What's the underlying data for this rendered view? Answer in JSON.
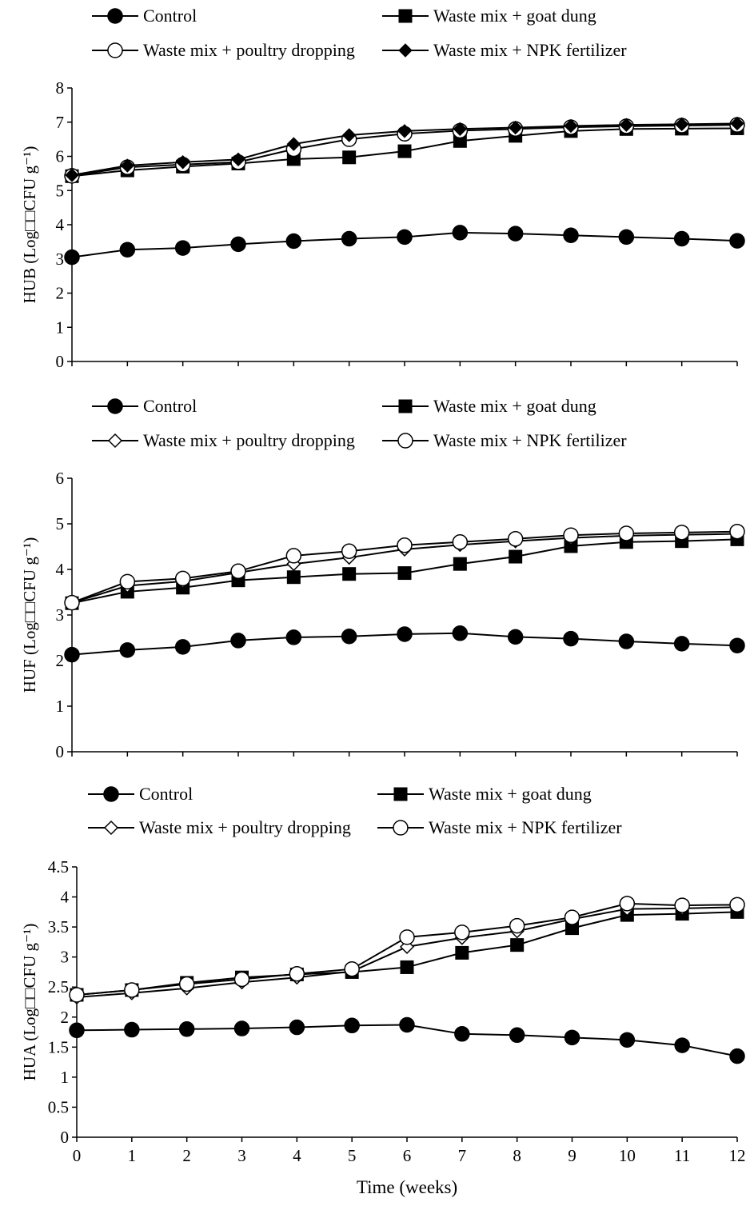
{
  "chart_data": [
    {
      "type": "line",
      "ylabel": "HUB (Log□□CFU g⁻¹)",
      "ylim": [
        0,
        8
      ],
      "yticks": [
        "0",
        "1",
        "2",
        "3",
        "4",
        "5",
        "6",
        "7",
        "8"
      ],
      "x": [
        0,
        1,
        2,
        3,
        4,
        5,
        6,
        7,
        8,
        9,
        10,
        11,
        12
      ],
      "legend": [
        "Control",
        "Waste mix + goat dung",
        "Waste mix + poultry dropping",
        "Waste mix + NPK fertilizer"
      ],
      "series": [
        {
          "name": "Control",
          "marker": "circle-filled",
          "values": [
            3.05,
            3.27,
            3.32,
            3.43,
            3.52,
            3.59,
            3.64,
            3.77,
            3.74,
            3.69,
            3.64,
            3.59,
            3.53
          ]
        },
        {
          "name": "Waste mix + goat dung",
          "marker": "square-filled",
          "values": [
            5.42,
            5.59,
            5.7,
            5.79,
            5.92,
            5.97,
            6.15,
            6.45,
            6.6,
            6.74,
            6.8,
            6.81,
            6.82
          ]
        },
        {
          "name": "Waste mix + poultry dropping",
          "marker": "circle-open",
          "values": [
            5.43,
            5.68,
            5.76,
            5.83,
            6.21,
            6.5,
            6.66,
            6.75,
            6.8,
            6.85,
            6.88,
            6.9,
            6.92
          ]
        },
        {
          "name": "Waste mix + NPK fertilizer",
          "marker": "diamond-filled",
          "values": [
            5.45,
            5.73,
            5.83,
            5.91,
            6.36,
            6.62,
            6.74,
            6.8,
            6.84,
            6.89,
            6.92,
            6.94,
            6.96
          ]
        }
      ]
    },
    {
      "type": "line",
      "ylabel": "HUF (Log□□CFU g⁻¹)",
      "ylim": [
        0,
        6
      ],
      "yticks": [
        "0",
        "1",
        "2",
        "3",
        "4",
        "5",
        "6"
      ],
      "x": [
        0,
        1,
        2,
        3,
        4,
        5,
        6,
        7,
        8,
        9,
        10,
        11,
        12
      ],
      "legend": [
        "Control",
        "Waste mix + goat dung",
        "Waste mix + poultry dropping",
        "Waste mix + NPK fertilizer"
      ],
      "series": [
        {
          "name": "Control",
          "marker": "circle-filled",
          "values": [
            2.13,
            2.23,
            2.3,
            2.44,
            2.51,
            2.53,
            2.58,
            2.6,
            2.52,
            2.48,
            2.42,
            2.37,
            2.33
          ]
        },
        {
          "name": "Waste mix + goat dung",
          "marker": "square-filled",
          "values": [
            3.26,
            3.51,
            3.6,
            3.76,
            3.83,
            3.9,
            3.92,
            4.12,
            4.28,
            4.51,
            4.6,
            4.62,
            4.66
          ]
        },
        {
          "name": "Waste mix + poultry dropping",
          "marker": "diamond-open",
          "values": [
            3.27,
            3.64,
            3.74,
            3.93,
            4.12,
            4.26,
            4.44,
            4.54,
            4.62,
            4.69,
            4.74,
            4.76,
            4.78
          ]
        },
        {
          "name": "Waste mix + NPK fertilizer",
          "marker": "circle-open",
          "values": [
            3.27,
            3.73,
            3.8,
            3.96,
            4.3,
            4.4,
            4.53,
            4.6,
            4.67,
            4.75,
            4.79,
            4.81,
            4.83
          ]
        }
      ]
    },
    {
      "type": "line",
      "ylabel": "HUA (Log□□CFU g⁻¹)",
      "xlabel": "Time (weeks)",
      "ylim": [
        0,
        4.5
      ],
      "yticks": [
        "0",
        "0.5",
        "1",
        "1.5",
        "2",
        "2.5",
        "3",
        "3.5",
        "4",
        "4.5"
      ],
      "x": [
        0,
        1,
        2,
        3,
        4,
        5,
        6,
        7,
        8,
        9,
        10,
        11,
        12
      ],
      "xticks": [
        "0",
        "1",
        "2",
        "3",
        "4",
        "5",
        "6",
        "7",
        "8",
        "9",
        "10",
        "11",
        "12"
      ],
      "legend": [
        "Control",
        "Waste mix + goat dung",
        "Waste mix + poultry dropping",
        "Waste mix + NPK fertilizer"
      ],
      "series": [
        {
          "name": "Control",
          "marker": "circle-filled",
          "values": [
            1.78,
            1.79,
            1.8,
            1.81,
            1.83,
            1.86,
            1.87,
            1.72,
            1.7,
            1.66,
            1.62,
            1.53,
            1.35
          ]
        },
        {
          "name": "Waste mix + goat dung",
          "marker": "square-filled",
          "values": [
            2.37,
            2.45,
            2.57,
            2.66,
            2.71,
            2.75,
            2.83,
            3.07,
            3.2,
            3.48,
            3.7,
            3.72,
            3.75
          ]
        },
        {
          "name": "Waste mix + poultry dropping",
          "marker": "diamond-open",
          "values": [
            2.33,
            2.4,
            2.48,
            2.58,
            2.66,
            2.76,
            3.17,
            3.32,
            3.43,
            3.63,
            3.8,
            3.81,
            3.83
          ]
        },
        {
          "name": "Waste mix + NPK fertilizer",
          "marker": "circle-open",
          "values": [
            2.37,
            2.45,
            2.55,
            2.63,
            2.72,
            2.8,
            3.33,
            3.41,
            3.52,
            3.66,
            3.89,
            3.86,
            3.87
          ]
        }
      ]
    }
  ]
}
